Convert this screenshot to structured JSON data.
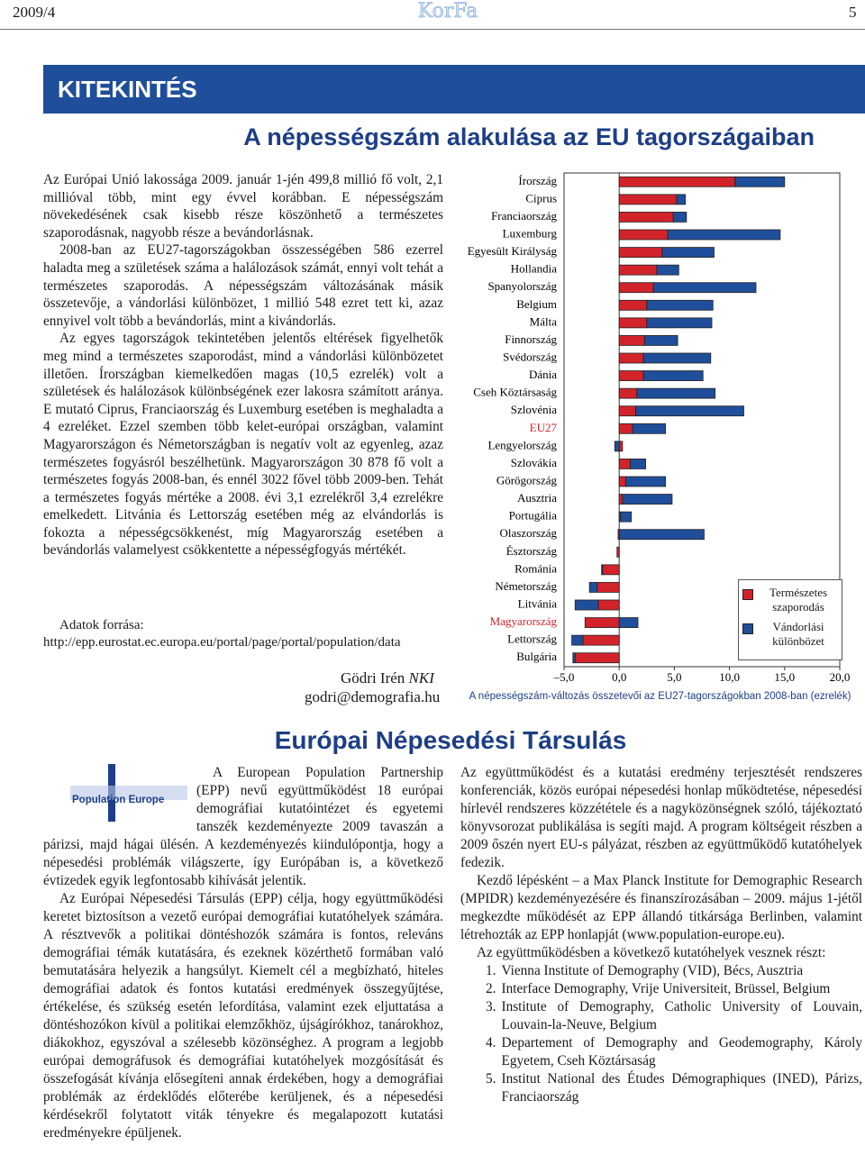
{
  "header": {
    "issue": "2009/4",
    "journal": "KorFa",
    "page": "5"
  },
  "section": "KITEKINTÉS",
  "article": {
    "title": "A népességszám alakulása az EU tagországaiban",
    "paragraphs": [
      "Az Európai Unió lakossága 2009. január 1-jén 499,8 millió fő volt, 2,1 millióval több, mint egy évvel korábban. E népességszám növekedésének csak kisebb része köszönhető a természetes szaporodásnak, nagyobb része a bevándorlásnak.",
      "2008-ban az EU27-tagországokban összességében 586 ezerrel haladta meg a születések száma a halálozások számát, ennyi volt tehát a természetes szaporodás. A népességszám változásának másik összetevője, a vándorlási különbözet, 1 millió 548 ezret tett ki, azaz ennyivel volt több a bevándorlás, mint a kivándorlás.",
      "Az egyes tagországok tekintetében jelentős eltérések figyelhetők meg mind a természetes szaporodást, mind a vándorlási különbözetet illetően. Írországban kiemelkedően magas (10,5 ezrelék) volt a születések és halálozások különbségének ezer lakosra számított aránya. E mutató Ciprus, Franciaország és Luxemburg esetében is meghaladta a 4 ezreléket. Ezzel szemben több kelet-európai országban, valamint Magyarországon és Németországban is negatív volt az egyenleg, azaz természetes fogyásról beszélhetünk. Magyarországon 30 878 fő volt a természetes fogyás 2008-ban, és ennél 3022 fővel több 2009-ben. Tehát a természetes fogyás mértéke a 2008. évi 3,1 ezrelékről 3,4 ezrelékre emelkedett. Litvánia és Lettország esetében még az elvándorlás is fokozta a népességcsökkenést, míg Magyarország esetében a bevándorlás valamelyest csökkentette a népességfogyás mértékét."
    ],
    "source_label": "Adatok forrása:",
    "source_url": "http://epp.eurostat.ec.europa.eu/portal/page/portal/population/data",
    "author_name": "Gödri Irén",
    "author_org": "NKI",
    "email": "godri@demografia.hu"
  },
  "chart_data": {
    "type": "bar",
    "orientation": "horizontal",
    "stacked": true,
    "caption": "A népességszám-változás összetevői az EU27-tagországokban 2008-ban (ezrelék)",
    "categories": [
      "Írország",
      "Ciprus",
      "Franciaország",
      "Luxemburg",
      "Egyesült Királyság",
      "Hollandia",
      "Spanyolország",
      "Belgium",
      "Málta",
      "Finnország",
      "Svédország",
      "Dánia",
      "Cseh Köztársaság",
      "Szlovénia",
      "EU27",
      "Lengyelország",
      "Szlovákia",
      "Görögország",
      "Ausztria",
      "Portugália",
      "Olaszország",
      "Észtország",
      "Románia",
      "Németország",
      "Litvánia",
      "Magyarország",
      "Lettország",
      "Bulgária"
    ],
    "highlighted": [
      "EU27",
      "Magyarország"
    ],
    "highlight_color": "#d2232a",
    "series": [
      {
        "name": "Természetes szaporodás",
        "color": "#d2232a",
        "values": [
          10.5,
          5.2,
          4.9,
          4.4,
          3.9,
          3.4,
          3.1,
          2.5,
          2.5,
          2.3,
          2.2,
          2.2,
          1.6,
          1.5,
          1.2,
          0.3,
          1.0,
          0.6,
          0.3,
          0.1,
          -0.1,
          -0.2,
          -1.5,
          -2.0,
          -1.9,
          -3.1,
          -3.3,
          -4.0
        ]
      },
      {
        "name": "Vándorlási különbözet",
        "color": "#1f4e9a",
        "values": [
          4.5,
          0.8,
          1.2,
          10.2,
          4.7,
          2.0,
          9.3,
          6.0,
          5.9,
          3.0,
          6.1,
          5.4,
          7.1,
          9.8,
          3.0,
          -0.4,
          1.4,
          3.6,
          4.5,
          1.0,
          7.7,
          0,
          -0.1,
          -0.7,
          -2.1,
          1.7,
          -1.0,
          -0.2
        ]
      }
    ],
    "xlim": [
      -5,
      20
    ],
    "xticks": [
      {
        "value": -5,
        "label": "–5,0"
      },
      {
        "value": 0,
        "label": "0,0"
      },
      {
        "value": 5,
        "label": "5,0"
      },
      {
        "value": 10,
        "label": "10,0"
      },
      {
        "value": 15,
        "label": "15,0"
      },
      {
        "value": 20,
        "label": "20,0"
      }
    ],
    "legend": "bottom-right"
  },
  "epp": {
    "title": "Európai Népesedési Társulás",
    "logo": "Population Europe",
    "left_paragraphs": [
      "A European Population Partnership (EPP) nevű együttműködést 18 európai demográfiai kutatóintézet és egyetemi tanszék kezdeményezte 2009 tavaszán a párizsi, majd hágai ülésén. A kezdeményezés kiindulópontja, hogy a népesedési problémák világszerte, így Európában is, a következő évtizedek egyik legfontosabb kihívását jelentik.",
      "Az Európai Népesedési Társulás (EPP) célja, hogy együttműködési keretet biztosítson a vezető európai demográfiai kutatóhelyek számára. A résztvevők a politikai döntéshozók számára is fontos, releváns demográfiai témák kutatására, és ezeknek közérthető formában való bemutatására helyezik a hangsúlyt. Kiemelt cél a megbízható, hiteles demográfiai adatok és fontos kutatási eredmények összegyűjtése, értékelése, és szükség esetén lefordítása, valamint ezek eljuttatása a döntéshozókon kívül a politikai elemzőkhöz, újságírókhoz, tanárokhoz, diákokhoz, egyszóval a szélesebb közönséghez. A program a legjobb európai demográfusok és demográfiai kutatóhelyek mozgósítását és összefogását kívánja elősegíteni annak érdekében, hogy a demográfiai problémák az érdeklődés előterébe kerüljenek, és a népesedési kérdésekről folytatott viták tényekre és megalapozott kutatási eredményekre épüljenek."
    ],
    "right_paragraphs": [
      "Az együttműködést és a kutatási eredmény terjesztését rendszeres konferenciák, közös európai népesedési honlap működtetése, népesedési hírlevél rendszeres közzététele és a nagyközönségnek szóló, tájékoztató könyvsorozat publikálása is segíti majd. A program költségeit részben a 2009 őszén nyert EU-s pályázat, részben az együttműködő kutatóhelyek fedezik.",
      "Kezdő lépésként – a Max Planck Institute for Demographic Research (MPIDR) kezdeményezésére és finanszírozásában – 2009. május 1-jétől megkezdte működését az EPP állandó titkársága Berlinben, valamint létrehozták az EPP honlapját (www.population-europe.eu).",
      "Az együttműködésben a következő kutatóhelyek vesznek részt:"
    ],
    "list": [
      {
        "number": "1.",
        "text": "Vienna Institute of Demography (VID), Bécs, Ausztria"
      },
      {
        "number": "2.",
        "text": "Interface Demography, Vrije Universiteit, Brüssel, Belgium"
      },
      {
        "number": "3.",
        "text": "Institute of Demography, Catholic University of Louvain, Louvain-la-Neuve, Belgium"
      },
      {
        "number": "4.",
        "text": "Departement of Demography and Geodemography, Károly Egyetem, Cseh Köztársaság"
      },
      {
        "number": "5.",
        "text": "Institut National des Études Démographiques (INED), Párizs, Franciaország"
      }
    ]
  }
}
